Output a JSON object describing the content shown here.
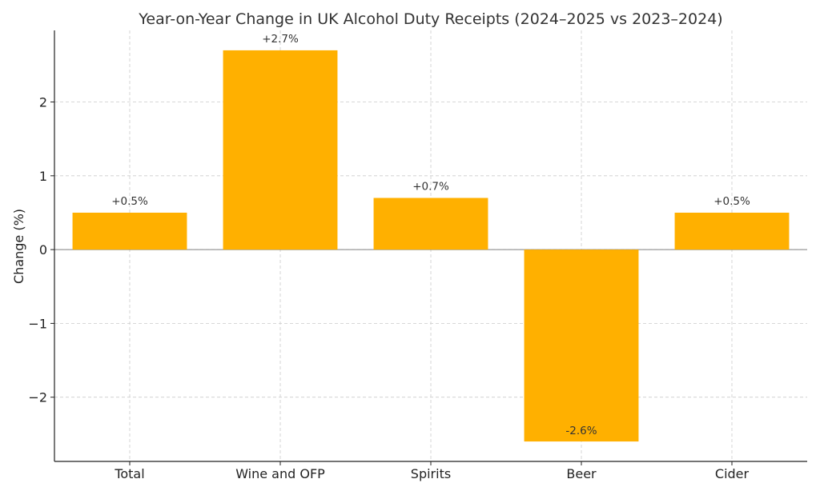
{
  "chart_data": {
    "type": "bar",
    "title": "Year-on-Year Change in UK Alcohol Duty Receipts (2024–2025 vs 2023–2024)",
    "xlabel": "",
    "ylabel": "Change (%)",
    "categories": [
      "Total",
      "Wine and OFP",
      "Spirits",
      "Beer",
      "Cider"
    ],
    "values": [
      0.5,
      2.7,
      0.7,
      -2.6,
      0.5
    ],
    "data_labels": [
      "+0.5%",
      "+2.7%",
      "+0.7%",
      "-2.6%",
      "+0.5%"
    ],
    "ylim": [
      -2.87,
      2.97
    ],
    "yticks": [
      -2,
      -1,
      0,
      1,
      2
    ],
    "ytick_labels": [
      "−2",
      "−1",
      "0",
      "1",
      "2"
    ],
    "grid": true,
    "bar_color": "#FFB000"
  }
}
